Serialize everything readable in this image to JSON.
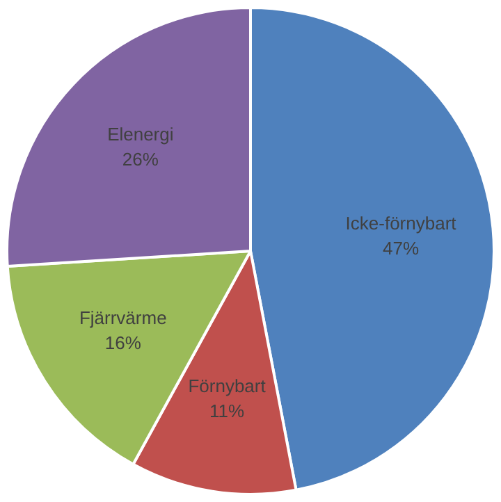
{
  "chart_data": {
    "type": "pie",
    "categories": [
      "Icke-förnybart",
      "Förnybart",
      "Fjärrvärme",
      "Elenergi"
    ],
    "values": [
      47,
      11,
      16,
      26
    ],
    "value_labels": [
      "47%",
      "11%",
      "16%",
      "26%"
    ],
    "colors": [
      "#4f81bd",
      "#c0504d",
      "#9bbb59",
      "#8064a2"
    ],
    "legend": false
  }
}
